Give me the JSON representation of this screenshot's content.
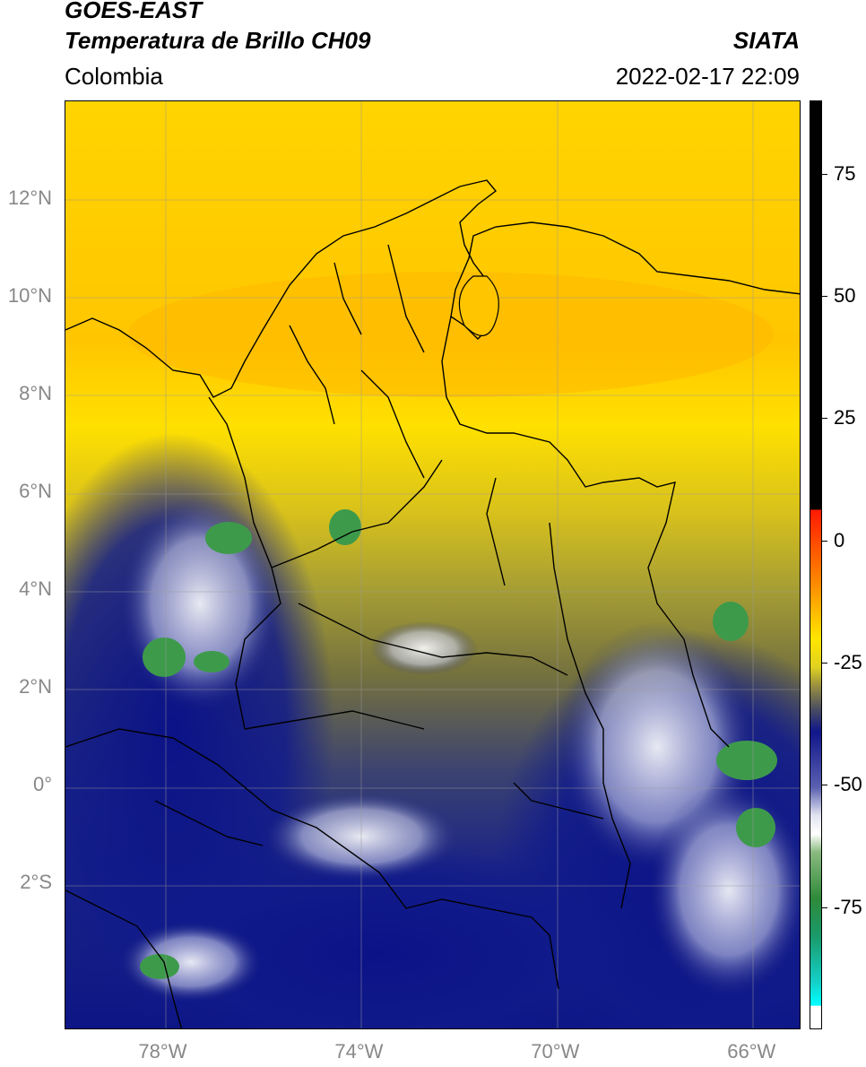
{
  "header": {
    "satellite": "GOES-EAST",
    "product": "Temperatura de Brillo CH09",
    "brand": "SIATA",
    "region": "Colombia",
    "timestamp": "2022-02-17 22:09"
  },
  "map": {
    "lat_labels": [
      {
        "text": "12°N",
        "lat": 12
      },
      {
        "text": "10°N",
        "lat": 10
      },
      {
        "text": "8°N",
        "lat": 8
      },
      {
        "text": "6°N",
        "lat": 6
      },
      {
        "text": "4°N",
        "lat": 4
      },
      {
        "text": "2°N",
        "lat": 2
      },
      {
        "text": "0°",
        "lat": 0
      },
      {
        "text": "2°S",
        "lat": -2
      }
    ],
    "lon_labels": [
      {
        "text": "78°W",
        "lon": -78
      },
      {
        "text": "74°W",
        "lon": -74
      },
      {
        "text": "70°W",
        "lon": -70
      },
      {
        "text": "66°W",
        "lon": -66
      }
    ],
    "lat_range": [
      -5,
      14
    ],
    "lon_range": [
      -80,
      -65
    ]
  },
  "colorbar": {
    "ticks": [
      "75",
      "50",
      "25",
      "0",
      "-25",
      "-50",
      "-75"
    ],
    "tick_values": [
      75,
      50,
      25,
      0,
      -25,
      -50,
      -75
    ],
    "range": [
      -100,
      90
    ]
  }
}
